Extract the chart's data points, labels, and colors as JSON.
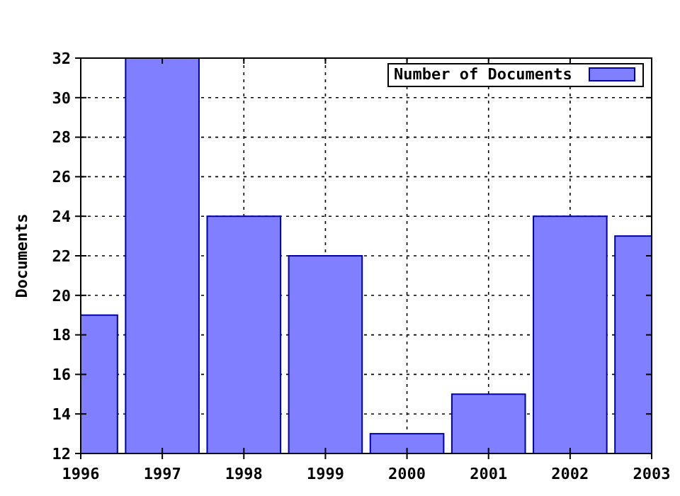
{
  "chart_data": {
    "type": "bar",
    "ylabel": "Documents",
    "x": [
      1996,
      1997,
      1998,
      1999,
      2000,
      2001,
      2002,
      2003
    ],
    "series": [
      {
        "name": "Number of Documents",
        "color": "#7f7fff",
        "values": [
          19,
          32,
          24,
          22,
          13,
          15,
          24,
          23
        ]
      }
    ],
    "xlim": [
      1996,
      2003
    ],
    "xticks": [
      1996,
      1997,
      1998,
      1999,
      2000,
      2001,
      2002,
      2003
    ],
    "ylim": [
      12,
      32
    ],
    "yticks": [
      12,
      14,
      16,
      18,
      20,
      22,
      24,
      26,
      28,
      30,
      32
    ],
    "grid": true,
    "legend": "top right"
  }
}
